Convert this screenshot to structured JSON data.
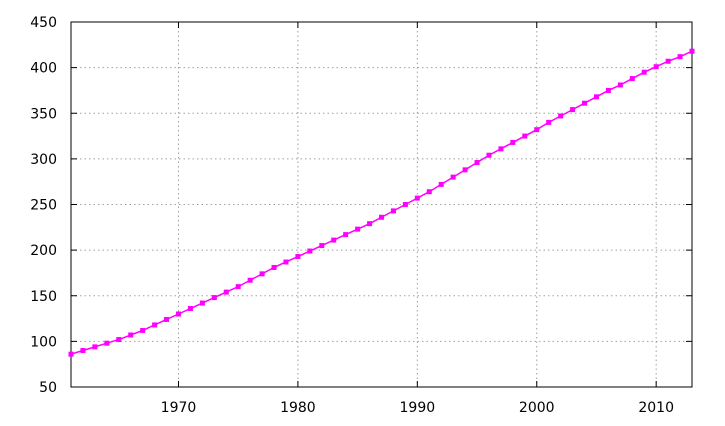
{
  "chart_data": {
    "type": "line",
    "title": "",
    "xlabel": "",
    "ylabel": "",
    "xlim": [
      1961,
      2013
    ],
    "ylim": [
      50,
      450
    ],
    "xticks": [
      1970,
      1980,
      1990,
      2000,
      2010
    ],
    "yticks": [
      50,
      100,
      150,
      200,
      250,
      300,
      350,
      400,
      450
    ],
    "grid": true,
    "legend": "none",
    "colors": {
      "series": "#ff00ff",
      "grid": "#a0a0a0",
      "axis": "#000000"
    },
    "series": [
      {
        "marker": "square",
        "x": [
          1961,
          1962,
          1963,
          1964,
          1965,
          1966,
          1967,
          1968,
          1969,
          1970,
          1971,
          1972,
          1973,
          1974,
          1975,
          1976,
          1977,
          1978,
          1979,
          1980,
          1981,
          1982,
          1983,
          1984,
          1985,
          1986,
          1987,
          1988,
          1989,
          1990,
          1991,
          1992,
          1993,
          1994,
          1995,
          1996,
          1997,
          1998,
          1999,
          2000,
          2001,
          2002,
          2003,
          2004,
          2005,
          2006,
          2007,
          2008,
          2009,
          2010,
          2011,
          2012,
          2013
        ],
        "values": [
          86,
          90,
          94,
          98,
          102,
          107,
          112,
          118,
          124,
          130,
          136,
          142,
          148,
          154,
          160,
          167,
          174,
          181,
          187,
          193,
          199,
          205,
          211,
          217,
          223,
          229,
          236,
          243,
          250,
          257,
          264,
          272,
          280,
          288,
          296,
          304,
          311,
          318,
          325,
          332,
          340,
          347,
          354,
          361,
          368,
          375,
          381,
          388,
          395,
          401,
          407,
          412,
          418
        ]
      }
    ]
  }
}
